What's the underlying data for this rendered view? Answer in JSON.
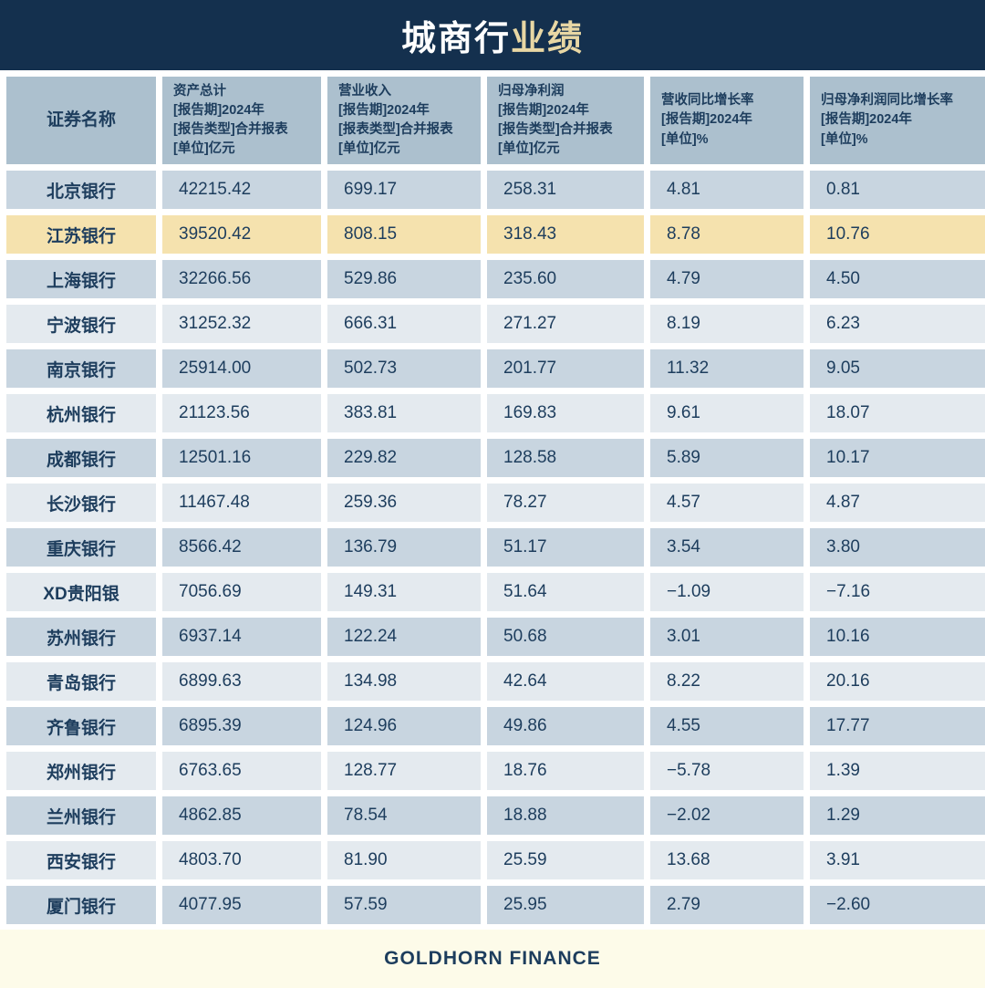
{
  "title": {
    "part1": "城商行",
    "part2": "业绩"
  },
  "table": {
    "name_header": "证券名称",
    "column_headers": [
      {
        "text": "资产总计\n[报告期]2024年\n[报告类型]合并报表\n[单位]亿元"
      },
      {
        "text": "营业收入\n[报告期]2024年\n[报表类型]合并报表\n[单位]亿元"
      },
      {
        "text": "归母净利润\n[报告期]2024年\n[报告类型]合并报表\n[单位]亿元"
      },
      {
        "text": "营收同比增长率\n[报告期]2024年\n[单位]%"
      },
      {
        "text": "归母净利润同比增长率\n[报告期]2024年\n[单位]%"
      }
    ]
  },
  "chart_data": {
    "type": "table",
    "title": "城商行业绩",
    "columns": [
      "证券名称",
      "资产总计 2024年 合并报表 (亿元)",
      "营业收入 2024年 合并报表 (亿元)",
      "归母净利润 2024年 合并报表 (亿元)",
      "营收同比增长率 2024年 (%)",
      "归母净利润同比增长率 2024年 (%)"
    ],
    "rows": [
      [
        "北京银行",
        42215.42,
        699.17,
        258.31,
        4.81,
        0.81
      ],
      [
        "江苏银行",
        39520.42,
        808.15,
        318.43,
        8.78,
        10.76
      ],
      [
        "上海银行",
        32266.56,
        529.86,
        235.6,
        4.79,
        4.5
      ],
      [
        "宁波银行",
        31252.32,
        666.31,
        271.27,
        8.19,
        6.23
      ],
      [
        "南京银行",
        25914.0,
        502.73,
        201.77,
        11.32,
        9.05
      ],
      [
        "杭州银行",
        21123.56,
        383.81,
        169.83,
        9.61,
        18.07
      ],
      [
        "成都银行",
        12501.16,
        229.82,
        128.58,
        5.89,
        10.17
      ],
      [
        "长沙银行",
        11467.48,
        259.36,
        78.27,
        4.57,
        4.87
      ],
      [
        "重庆银行",
        8566.42,
        136.79,
        51.17,
        3.54,
        3.8
      ],
      [
        "XD贵阳银",
        7056.69,
        149.31,
        51.64,
        -1.09,
        -7.16
      ],
      [
        "苏州银行",
        6937.14,
        122.24,
        50.68,
        3.01,
        10.16
      ],
      [
        "青岛银行",
        6899.63,
        134.98,
        42.64,
        8.22,
        20.16
      ],
      [
        "齐鲁银行",
        6895.39,
        124.96,
        49.86,
        4.55,
        17.77
      ],
      [
        "郑州银行",
        6763.65,
        128.77,
        18.76,
        -5.78,
        1.39
      ],
      [
        "兰州银行",
        4862.85,
        78.54,
        18.88,
        -2.02,
        1.29
      ],
      [
        "西安银行",
        4803.7,
        81.9,
        25.59,
        13.68,
        3.91
      ],
      [
        "厦门银行",
        4077.95,
        57.59,
        25.95,
        2.79,
        -2.6
      ]
    ],
    "highlighted_row": "江苏银行",
    "highlighted_row_index": 1
  },
  "footer": {
    "brand": "GOLDHORN FINANCE"
  },
  "colors": {
    "navy": "#14304e",
    "gold": "#e8d7a4",
    "header_cell": "#acc0ce",
    "row_dark": "#c8d5e0",
    "row_light": "#e4eaef",
    "row_highlight": "#f5e2ae",
    "footer_bg": "#fdfbe9",
    "text": "#1d3d5d"
  }
}
